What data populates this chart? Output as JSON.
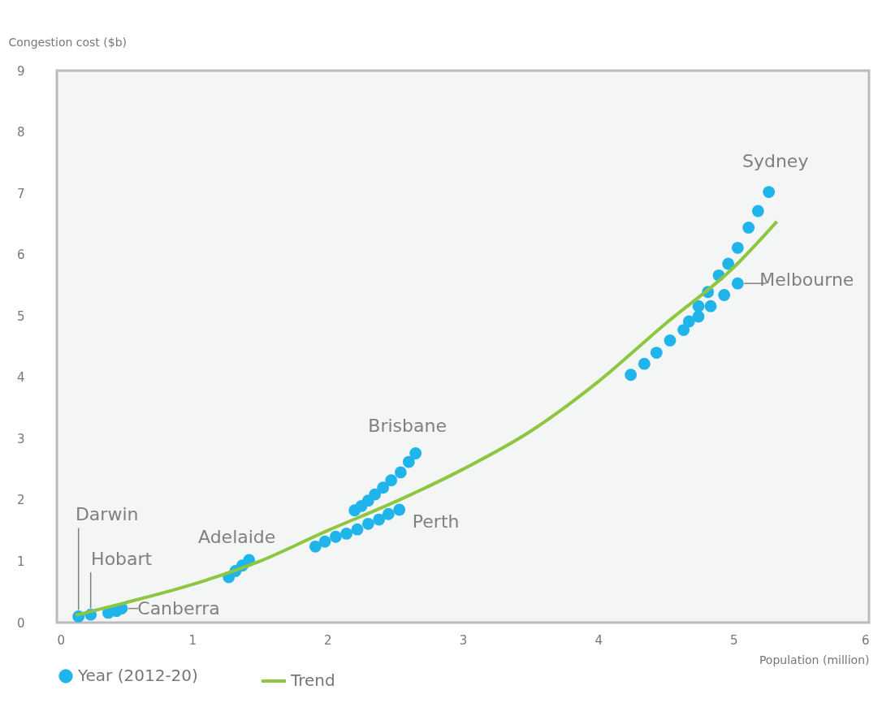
{
  "chart_data": {
    "type": "scatter",
    "xlabel": "Population (million)",
    "ylabel": "Congestion cost ($b)",
    "xlim": [
      0,
      6
    ],
    "ylim": [
      0,
      9
    ],
    "xticks": [
      0,
      1,
      2,
      3,
      4,
      5,
      6
    ],
    "yticks": [
      0,
      1,
      2,
      3,
      4,
      5,
      6,
      7,
      8,
      9
    ],
    "grid": false,
    "legend": "bottom left",
    "series": [
      {
        "name": "Year (2012-20)",
        "color": "#1fb5ea",
        "x": [
          0.16,
          0.25,
          0.38,
          0.44,
          0.48,
          1.27,
          1.32,
          1.37,
          1.42,
          1.91,
          1.98,
          2.06,
          2.14,
          2.22,
          2.3,
          2.38,
          2.45,
          2.53,
          2.2,
          2.25,
          2.3,
          2.35,
          2.41,
          2.47,
          2.54,
          2.6,
          2.65,
          4.24,
          4.34,
          4.43,
          4.53,
          4.63,
          4.67,
          4.74,
          4.74,
          4.83,
          4.81,
          4.93,
          4.89,
          5.03,
          4.96,
          5.03,
          5.11,
          5.18,
          5.26
        ],
        "values": [
          0.1,
          0.13,
          0.16,
          0.19,
          0.23,
          0.74,
          0.84,
          0.93,
          1.02,
          1.24,
          1.32,
          1.4,
          1.45,
          1.52,
          1.61,
          1.68,
          1.77,
          1.84,
          1.83,
          1.9,
          1.99,
          2.09,
          2.2,
          2.32,
          2.45,
          2.62,
          2.76,
          4.04,
          4.22,
          4.4,
          4.6,
          4.77,
          4.91,
          4.99,
          5.16,
          5.16,
          5.39,
          5.34,
          5.66,
          5.53,
          5.85,
          6.11,
          6.44,
          6.71,
          7.02
        ]
      },
      {
        "name": "Trend",
        "type": "line",
        "color": "#8dc63f",
        "line_style": "solid",
        "x": [
          0.14,
          0.5,
          1,
          1.5,
          2,
          2.5,
          3,
          3.5,
          4,
          4.5,
          5,
          5.32
        ],
        "values": [
          0.12,
          0.32,
          0.62,
          1.0,
          1.5,
          1.97,
          2.5,
          3.12,
          3.93,
          4.88,
          5.79,
          6.54
        ]
      }
    ],
    "annotations": [
      {
        "text": "Darwin",
        "x": 0.16,
        "y": 0.1
      },
      {
        "text": "Hobart",
        "x": 0.25,
        "y": 0.13
      },
      {
        "text": "Canberra",
        "x": 0.48,
        "y": 0.23
      },
      {
        "text": "Adelaide",
        "x": 1.42,
        "y": 1.02
      },
      {
        "text": "Brisbane",
        "x": 2.65,
        "y": 2.76
      },
      {
        "text": "Perth",
        "x": 2.53,
        "y": 1.84
      },
      {
        "text": "Melbourne",
        "x": 5.03,
        "y": 5.53
      },
      {
        "text": "Sydney",
        "x": 5.26,
        "y": 7.02
      }
    ]
  }
}
